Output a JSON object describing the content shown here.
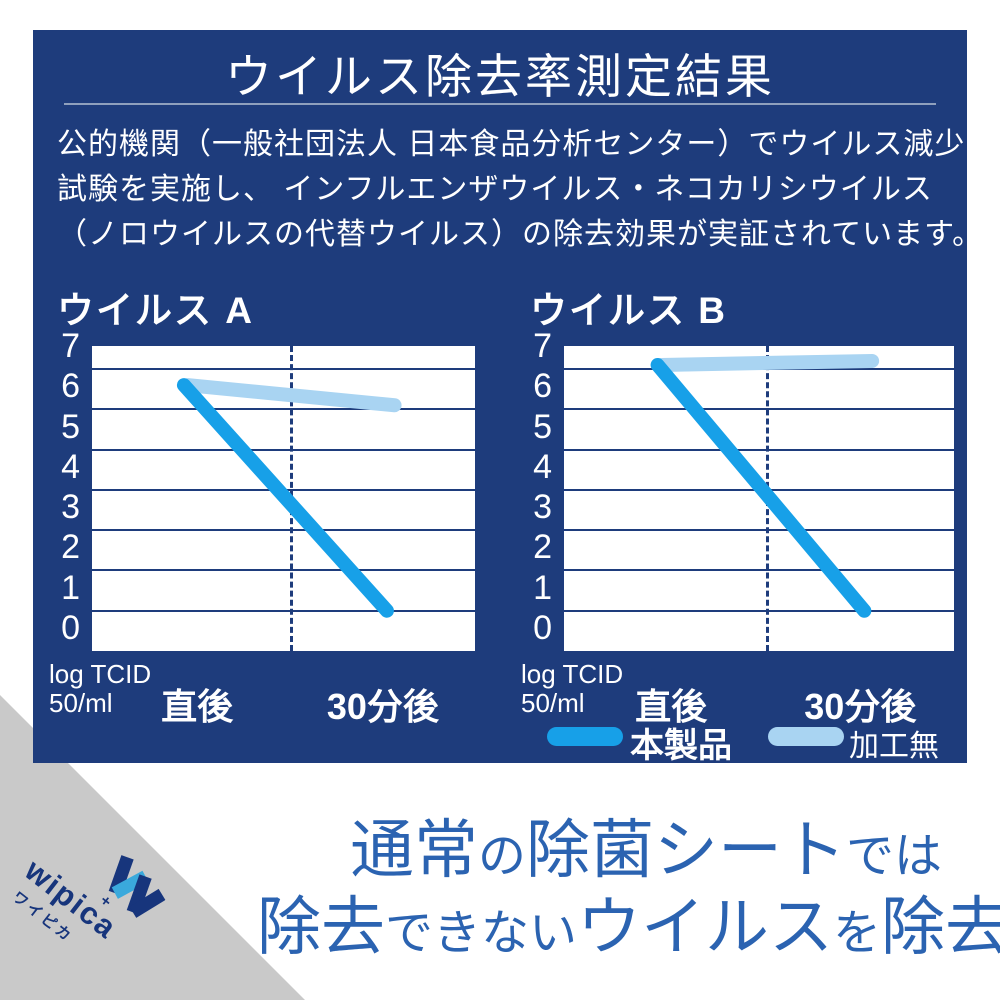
{
  "panel": {
    "title": "ウイルス除去率測定結果",
    "description_lines": [
      "公的機関（一般社団法人 日本食品分析センター）でウイルス減少",
      "試験を実施し、 インフルエンザウイルス・ネコカリシウイルス",
      "（ノロウイルスの代替ウイルス）の除去効果が実証されています。"
    ],
    "legend": [
      {
        "label": "本製品",
        "color": "#17a0e8"
      },
      {
        "label": "加工無し",
        "color": "#a9d4f2"
      }
    ]
  },
  "chart_data": [
    {
      "type": "line",
      "title": "ウイルス A",
      "categories": [
        "直後",
        "30分後"
      ],
      "yticks": [
        7,
        6,
        5,
        4,
        3,
        2,
        1,
        0
      ],
      "ylim": [
        0,
        7.57
      ],
      "ylabel_lines": [
        "log TCID",
        "50/ml"
      ],
      "grid": true,
      "series": [
        {
          "name": "本製品",
          "color": "#17a0e8",
          "values": [
            6.6,
            1.0
          ]
        },
        {
          "name": "加工無し",
          "color": "#a9d4f2",
          "values": [
            6.6,
            6.1
          ]
        }
      ]
    },
    {
      "type": "line",
      "title": "ウイルス B",
      "categories": [
        "直後",
        "30分後"
      ],
      "yticks": [
        7,
        6,
        5,
        4,
        3,
        2,
        1,
        0
      ],
      "ylim": [
        0,
        7.57
      ],
      "ylabel_lines": [
        "log TCID",
        "50/ml"
      ],
      "grid": true,
      "series": [
        {
          "name": "本製品",
          "color": "#17a0e8",
          "values": [
            7.1,
            1.0
          ]
        },
        {
          "name": "加工無し",
          "color": "#a9d4f2",
          "values": [
            7.1,
            7.2
          ]
        }
      ]
    }
  ],
  "footer": {
    "headline_line1": [
      {
        "text": "通常",
        "size": "big"
      },
      {
        "text": "の",
        "size": "small"
      },
      {
        "text": "除菌シート",
        "size": "big"
      },
      {
        "text": "では",
        "size": "small"
      }
    ],
    "headline_line2": [
      {
        "text": "除去",
        "size": "big"
      },
      {
        "text": "できない",
        "size": "small"
      },
      {
        "text": "ウイルス",
        "size": "big"
      },
      {
        "text": "を",
        "size": "small"
      },
      {
        "text": "除去",
        "size": "big"
      }
    ],
    "logo": {
      "brand": "wipica",
      "brand_plus": "+",
      "brand_jp": "ワイピカ"
    }
  },
  "colors": {
    "panel_bg": "#1e3c7c",
    "grid_navy": "#1e3c7c",
    "product_line": "#17a0e8",
    "untreated_line": "#a9d4f2",
    "separator": "#8fa0bd",
    "headline_text": "#2b63b1",
    "ribbon_gray": "#c9c9c9",
    "logo_navy": "#17357c",
    "logo_cyan": "#3aa9dc"
  }
}
